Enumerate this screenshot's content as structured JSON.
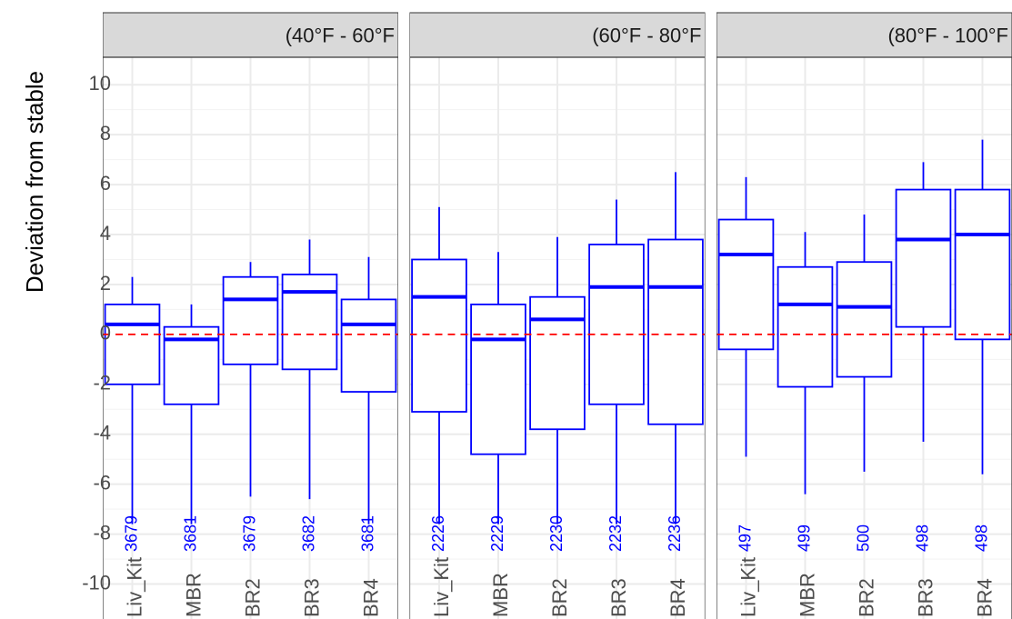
{
  "y_label": "Deviation from stable",
  "chart_data": [
    {
      "type": "box",
      "title": "(40°F - 60°F",
      "color": "#0000ff",
      "categories": [
        "Liv_Kit",
        "MBR",
        "BR2",
        "BR3",
        "BR4"
      ],
      "counts": [
        3679,
        3681,
        3679,
        3682,
        3681
      ],
      "stats": [
        {
          "low": -7.6,
          "q1": -2.0,
          "median": 0.4,
          "q3": 1.2,
          "high": 2.3
        },
        {
          "low": -7.6,
          "q1": -2.8,
          "median": -0.2,
          "q3": 0.3,
          "high": 1.2
        },
        {
          "low": -6.5,
          "q1": -1.2,
          "median": 1.4,
          "q3": 2.3,
          "high": 2.9
        },
        {
          "low": -6.6,
          "q1": -1.4,
          "median": 1.7,
          "q3": 2.4,
          "high": 3.8
        },
        {
          "low": -7.6,
          "q1": -2.3,
          "median": 0.4,
          "q3": 1.4,
          "high": 3.1
        }
      ],
      "ylim": [
        -11.4,
        11.1
      ],
      "yticks": [
        10,
        8,
        6,
        4,
        2,
        0,
        -2,
        -4,
        -6,
        -8,
        -10
      ],
      "hline": {
        "value": 0,
        "color": "#ff0000"
      },
      "grid": true
    },
    {
      "type": "box",
      "title": "(60°F - 80°F",
      "color": "#0000ff",
      "categories": [
        "Liv_Kit",
        "MBR",
        "BR2",
        "BR3",
        "BR4"
      ],
      "counts": [
        2226,
        2229,
        2230,
        2232,
        2236
      ],
      "stats": [
        {
          "low": -7.6,
          "q1": -3.1,
          "median": 1.5,
          "q3": 3.0,
          "high": 5.1
        },
        {
          "low": -7.6,
          "q1": -4.8,
          "median": -0.2,
          "q3": 1.2,
          "high": 3.3
        },
        {
          "low": -7.6,
          "q1": -3.8,
          "median": 0.6,
          "q3": 1.5,
          "high": 3.9
        },
        {
          "low": -7.6,
          "q1": -2.8,
          "median": 1.9,
          "q3": 3.6,
          "high": 5.4
        },
        {
          "low": -7.6,
          "q1": -3.6,
          "median": 1.9,
          "q3": 3.8,
          "high": 6.5
        }
      ],
      "ylim": [
        -11.4,
        11.1
      ],
      "hline": {
        "value": 0,
        "color": "#ff0000"
      },
      "grid": true
    },
    {
      "type": "box",
      "title": "(80°F - 100°F",
      "color": "#0000ff",
      "categories": [
        "Liv_Kit",
        "MBR",
        "BR2",
        "BR3",
        "BR4"
      ],
      "counts": [
        497,
        499,
        500,
        498,
        498
      ],
      "stats": [
        {
          "low": -4.9,
          "q1": -0.6,
          "median": 3.2,
          "q3": 4.6,
          "high": 6.3
        },
        {
          "low": -6.4,
          "q1": -2.1,
          "median": 1.2,
          "q3": 2.7,
          "high": 4.1
        },
        {
          "low": -5.5,
          "q1": -1.7,
          "median": 1.1,
          "q3": 2.9,
          "high": 4.8
        },
        {
          "low": -4.3,
          "q1": 0.3,
          "median": 3.8,
          "q3": 5.8,
          "high": 6.9
        },
        {
          "low": -5.6,
          "q1": -0.2,
          "median": 4.0,
          "q3": 5.8,
          "high": 7.8
        }
      ],
      "ylim": [
        -11.4,
        11.1
      ],
      "hline": {
        "value": 0,
        "color": "#ff0000"
      },
      "grid": true
    }
  ]
}
